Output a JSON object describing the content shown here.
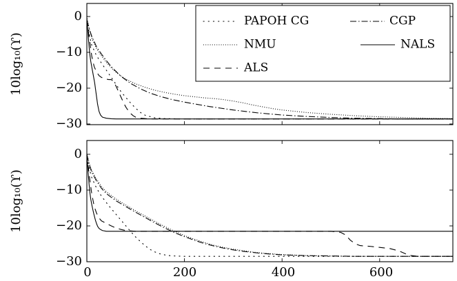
{
  "chart_data": [
    {
      "type": "line",
      "panel": "top",
      "ylabel": "10log₁₀(ϒ)",
      "xlim": [
        0,
        750
      ],
      "ylim": [
        -30,
        4
      ],
      "yticks": [
        0,
        -10,
        -20,
        -30
      ],
      "ytick_labels": [
        "0",
        "−10",
        "−20",
        "−30"
      ],
      "xticks": [],
      "xtick_labels": [],
      "legend": {
        "position": "top-right",
        "columns": 2
      },
      "series": [
        {
          "name": "PAPOH CG",
          "style": "loosely-dotted",
          "x": [
            0,
            5,
            10,
            20,
            30,
            40,
            50,
            60,
            70,
            80,
            90,
            100,
            110,
            120,
            140,
            160,
            200,
            300,
            750
          ],
          "y": [
            -1,
            -5,
            -8,
            -11,
            -13,
            -15,
            -17,
            -19,
            -21,
            -22.6,
            -24.2,
            -25.6,
            -26.8,
            -27.6,
            -28.3,
            -28.5,
            -28.6,
            -28.6,
            -28.6
          ]
        },
        {
          "name": "CGP",
          "style": "dash-dot",
          "x": [
            0,
            5,
            10,
            20,
            30,
            40,
            50,
            70,
            90,
            110,
            130,
            150,
            175,
            200,
            225,
            250,
            275,
            300,
            325,
            350,
            375,
            400,
            450,
            500,
            550,
            600,
            650,
            700,
            750
          ],
          "y": [
            -1,
            -3.5,
            -5.5,
            -8.5,
            -10.5,
            -12.3,
            -14,
            -16.7,
            -18.7,
            -20.2,
            -21.4,
            -22.3,
            -23.2,
            -23.9,
            -24.5,
            -25.1,
            -25.6,
            -26.1,
            -26.5,
            -26.9,
            -27.2,
            -27.5,
            -27.9,
            -28.2,
            -28.4,
            -28.5,
            -28.6,
            -28.6,
            -28.6
          ]
        },
        {
          "name": "NMU",
          "style": "densely-dotted",
          "x": [
            0,
            5,
            10,
            20,
            30,
            40,
            50,
            60,
            70,
            80,
            100,
            120,
            140,
            160,
            180,
            200,
            220,
            240,
            260,
            280,
            300,
            320,
            340,
            360,
            380,
            400,
            450,
            500,
            550,
            600,
            650,
            700,
            750
          ],
          "y": [
            0,
            -3.5,
            -6,
            -9,
            -11,
            -12.8,
            -14.3,
            -15.6,
            -16.6,
            -17.5,
            -18.8,
            -19.8,
            -20.6,
            -21.2,
            -21.7,
            -22.1,
            -22.4,
            -22.7,
            -22.9,
            -23.2,
            -23.6,
            -24.1,
            -24.7,
            -25.2,
            -25.7,
            -26.1,
            -26.8,
            -27.3,
            -27.7,
            -28.0,
            -28.2,
            -28.4,
            -28.5
          ]
        },
        {
          "name": "NALS",
          "style": "solid",
          "x": [
            0,
            2,
            4,
            6,
            8,
            10,
            12,
            14,
            16,
            18,
            20,
            22,
            25,
            28,
            32,
            40,
            50,
            60,
            80,
            100,
            750
          ],
          "y": [
            -1,
            -4,
            -7.5,
            -10.5,
            -12.5,
            -14,
            -15.5,
            -17,
            -18.5,
            -20.5,
            -22.5,
            -24.5,
            -26.5,
            -27.5,
            -28.1,
            -28.4,
            -28.55,
            -28.6,
            -28.6,
            -28.6,
            -28.6
          ]
        },
        {
          "name": "ALS",
          "style": "dashed",
          "x": [
            0,
            5,
            10,
            15,
            20,
            25,
            30,
            35,
            40,
            45,
            50,
            55,
            60,
            65,
            70,
            75,
            80,
            85,
            90,
            95,
            100,
            110,
            120,
            140,
            160,
            200,
            750
          ],
          "y": [
            -1,
            -6,
            -11,
            -14,
            -15.5,
            -16.5,
            -17,
            -17.3,
            -17.5,
            -17.6,
            -17.6,
            -18.2,
            -19.5,
            -21,
            -22.5,
            -24,
            -25.3,
            -26.3,
            -27.1,
            -27.7,
            -28.1,
            -28.4,
            -28.5,
            -28.6,
            -28.6,
            -28.6,
            -28.6
          ]
        }
      ]
    },
    {
      "type": "line",
      "panel": "bottom",
      "ylabel": "10log₁₀(ϒ)",
      "xlim": [
        0,
        750
      ],
      "ylim": [
        -30,
        4
      ],
      "yticks": [
        0,
        -10,
        -20,
        -30
      ],
      "ytick_labels": [
        "0",
        "−10",
        "−20",
        "−30"
      ],
      "xticks": [
        0,
        200,
        400,
        600
      ],
      "xtick_labels": [
        "0",
        "200",
        "400",
        "600"
      ],
      "series": [
        {
          "name": "PAPOH CG",
          "style": "loosely-dotted",
          "x": [
            0,
            5,
            10,
            20,
            30,
            40,
            50,
            60,
            70,
            80,
            90,
            100,
            110,
            120,
            130,
            140,
            150,
            160,
            170,
            180,
            200,
            750
          ],
          "y": [
            -1,
            -4,
            -6.5,
            -9.5,
            -11.7,
            -13.5,
            -15.2,
            -16.8,
            -18.4,
            -20,
            -21.6,
            -23.1,
            -24.4,
            -25.6,
            -26.6,
            -27.3,
            -27.8,
            -28.1,
            -28.3,
            -28.4,
            -28.5,
            -28.5
          ]
        },
        {
          "name": "CGP",
          "style": "dash-dot",
          "x": [
            0,
            5,
            10,
            20,
            30,
            40,
            50,
            60,
            80,
            100,
            120,
            140,
            160,
            180,
            200,
            220,
            240,
            260,
            280,
            300,
            320,
            340,
            360,
            380,
            400,
            450,
            500,
            550,
            600,
            650,
            700,
            750
          ],
          "y": [
            0,
            -3,
            -5,
            -7.5,
            -9.5,
            -11,
            -12,
            -13,
            -14.6,
            -16.2,
            -17.7,
            -19.2,
            -20.6,
            -21.9,
            -23,
            -24,
            -24.9,
            -25.6,
            -26.2,
            -26.7,
            -27.1,
            -27.4,
            -27.7,
            -27.9,
            -28.1,
            -28.3,
            -28.4,
            -28.5,
            -28.5,
            -28.5,
            -28.5,
            -28.5
          ]
        },
        {
          "name": "NMU",
          "style": "densely-dotted",
          "x": [
            0,
            5,
            10,
            20,
            30,
            40,
            50,
            60,
            80,
            100,
            120,
            140,
            160,
            180,
            200,
            220,
            240,
            260,
            280,
            300,
            320,
            340,
            360,
            380,
            400,
            450,
            500,
            550,
            600,
            650,
            700,
            750
          ],
          "y": [
            0,
            -2.5,
            -4.5,
            -7,
            -9,
            -10.5,
            -11.5,
            -12.5,
            -14.2,
            -15.8,
            -17.3,
            -18.8,
            -20.2,
            -21.5,
            -22.7,
            -23.7,
            -24.6,
            -25.4,
            -26,
            -26.5,
            -26.9,
            -27.3,
            -27.6,
            -27.8,
            -28,
            -28.3,
            -28.4,
            -28.5,
            -28.5,
            -28.5,
            -28.5,
            -28.5
          ]
        },
        {
          "name": "NALS",
          "style": "solid",
          "x": [
            0,
            2,
            4,
            6,
            8,
            10,
            12,
            14,
            16,
            18,
            20,
            22,
            25,
            28,
            32,
            40,
            50,
            60,
            100,
            750
          ],
          "y": [
            0,
            -4,
            -7.5,
            -10.5,
            -12.5,
            -14,
            -15.3,
            -16.5,
            -17.6,
            -18.6,
            -19.4,
            -20.1,
            -20.7,
            -21.0,
            -21.3,
            -21.5,
            -21.5,
            -21.5,
            -21.5,
            -21.5
          ]
        },
        {
          "name": "ALS",
          "style": "dashed",
          "x": [
            0,
            5,
            10,
            15,
            20,
            25,
            30,
            40,
            50,
            60,
            70,
            80,
            100,
            120,
            150,
            200,
            300,
            400,
            500,
            520,
            530,
            540,
            550,
            560,
            580,
            600,
            620,
            640,
            660,
            680,
            700,
            750
          ],
          "y": [
            0,
            -6,
            -11,
            -14.5,
            -16.5,
            -17.8,
            -18.6,
            -19.3,
            -20,
            -20.6,
            -21,
            -21.3,
            -21.5,
            -21.5,
            -21.5,
            -21.5,
            -21.5,
            -21.5,
            -21.5,
            -21.8,
            -22.5,
            -24.0,
            -25.0,
            -25.5,
            -25.7,
            -26.0,
            -26.3,
            -27.0,
            -28.2,
            -28.5,
            -28.5,
            -28.5
          ]
        }
      ]
    }
  ]
}
